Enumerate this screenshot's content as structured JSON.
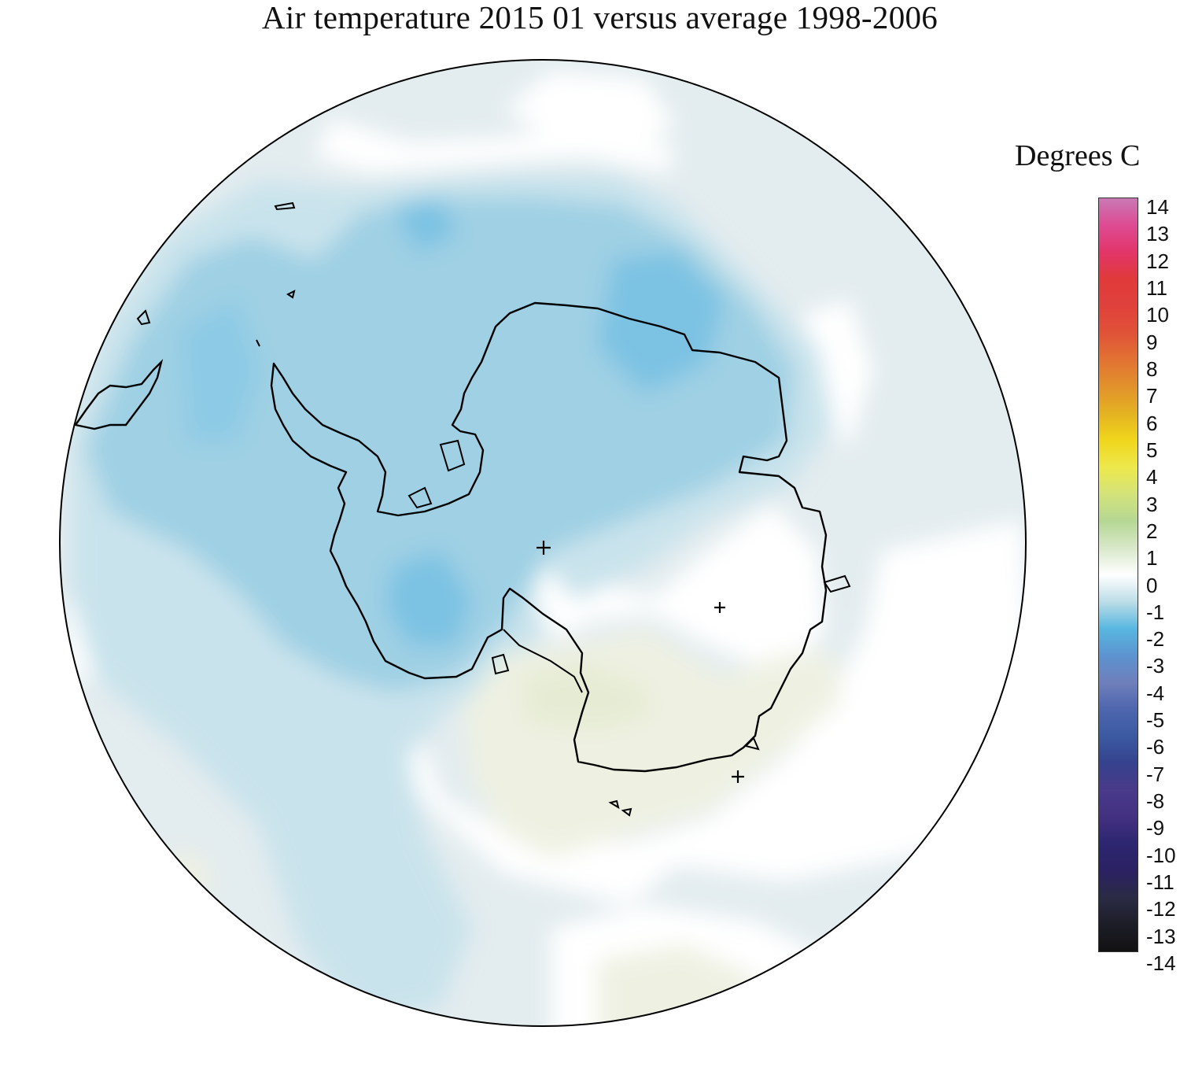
{
  "title": "Air temperature 2015 01 versus average 1998-2006",
  "legend": {
    "title": "Degrees C",
    "ticks": [
      "14",
      "13",
      "12",
      "11",
      "10",
      "9",
      "8",
      "7",
      "6",
      "5",
      "4",
      "3",
      "2",
      "1",
      "0",
      "-1",
      "-2",
      "-3",
      "-4",
      "-5",
      "-6",
      "-7",
      "-8",
      "-9",
      "-10",
      "-11",
      "-12",
      "-13",
      "-14"
    ],
    "range": [
      -14,
      14
    ],
    "colors": {
      "14": "#c979b4",
      "13": "#de4b93",
      "12": "#e2356a",
      "11": "#e03a3a",
      "10": "#e0413b",
      "9": "#e05238",
      "8": "#e27233",
      "7": "#e2922c",
      "6": "#e4b222",
      "5": "#f0d61c",
      "4": "#eee84c",
      "3": "#d3e37a",
      "2": "#b5d793",
      "1": "#d9e8c9",
      "0": "#ffffff",
      "-1": "#bcdde7",
      "-2": "#58b7e0",
      "-3": "#5c93d0",
      "-4": "#6f7fbb",
      "-5": "#4e66ae",
      "-6": "#3b5aa2",
      "-7": "#36428d",
      "-8": "#493a8a",
      "-9": "#433081",
      "-10": "#2d2670",
      "-11": "#2b2163",
      "-12": "#2b2b45",
      "-13": "#1d1d28",
      "-14": "#121212"
    }
  },
  "map": {
    "projection": "south-polar-stereographic",
    "region": "Antarctica and Southern Ocean",
    "anomaly_fill": {
      "near_zero": "#ffffff",
      "slight_cool": "#e3ecef",
      "cool": "#c9e3ec",
      "colder": "#9fd0e4",
      "cold_core": "#7cc2e3",
      "slight_warm": "#eef1e2"
    },
    "markers": "plus"
  }
}
